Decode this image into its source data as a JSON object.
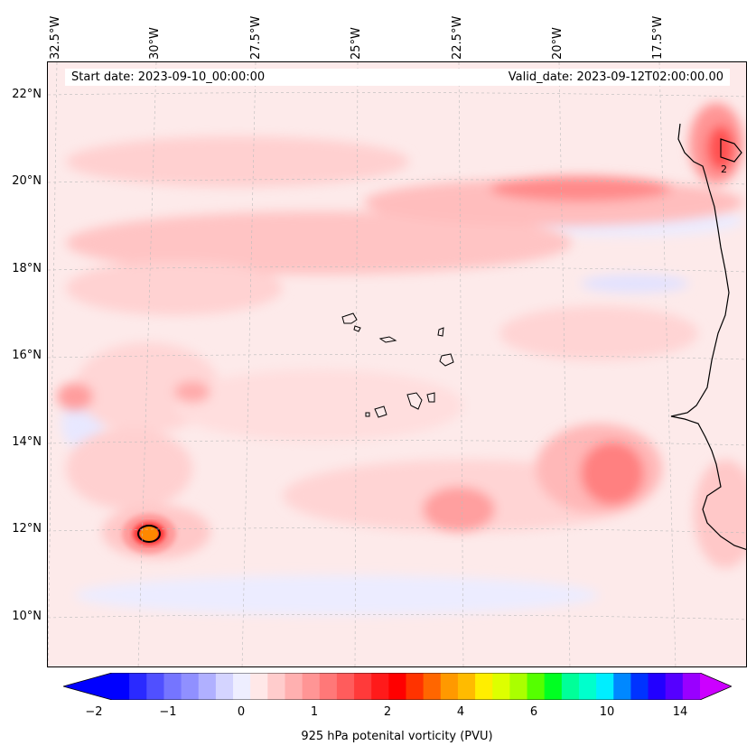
{
  "map": {
    "start_date": "Start date: 2023-09-10_00:00:00",
    "valid_date": "Valid_date: 2023-09-12T02:00:00.00",
    "lon_labels": [
      "32.5°W",
      "30°W",
      "27.5°W",
      "25°W",
      "22.5°W",
      "20°W",
      "17.5°W"
    ],
    "lat_labels": [
      "22°N",
      "20°N",
      "18°N",
      "16°N",
      "14°N",
      "12°N",
      "10°N"
    ],
    "contour_label": "2"
  },
  "colorbar": {
    "label": "925 hPa potenital vorticity (PVU)",
    "ticks": [
      "−2",
      "−1",
      "0",
      "1",
      "2",
      "4",
      "6",
      "10",
      "14"
    ],
    "colors": [
      "#0000ff",
      "#2a2aff",
      "#5050ff",
      "#7575ff",
      "#9090ff",
      "#b0b0ff",
      "#d4d4ff",
      "#eeeeff",
      "#ffe8e8",
      "#ffcccc",
      "#ffb0b0",
      "#ff9595",
      "#ff7878",
      "#ff5c5c",
      "#ff3a3a",
      "#ff1a1a",
      "#ff0000",
      "#ff3300",
      "#ff6600",
      "#ff9900",
      "#ffbb00",
      "#ffee00",
      "#ddff00",
      "#aaff00",
      "#55ff00",
      "#00ff22",
      "#00ff99",
      "#00ffcc",
      "#00eeff",
      "#0088ff",
      "#0033ff",
      "#2200ff",
      "#5500ff",
      "#9900ff"
    ],
    "extend_low": "#0000ff",
    "extend_high": "#cc00ff"
  }
}
